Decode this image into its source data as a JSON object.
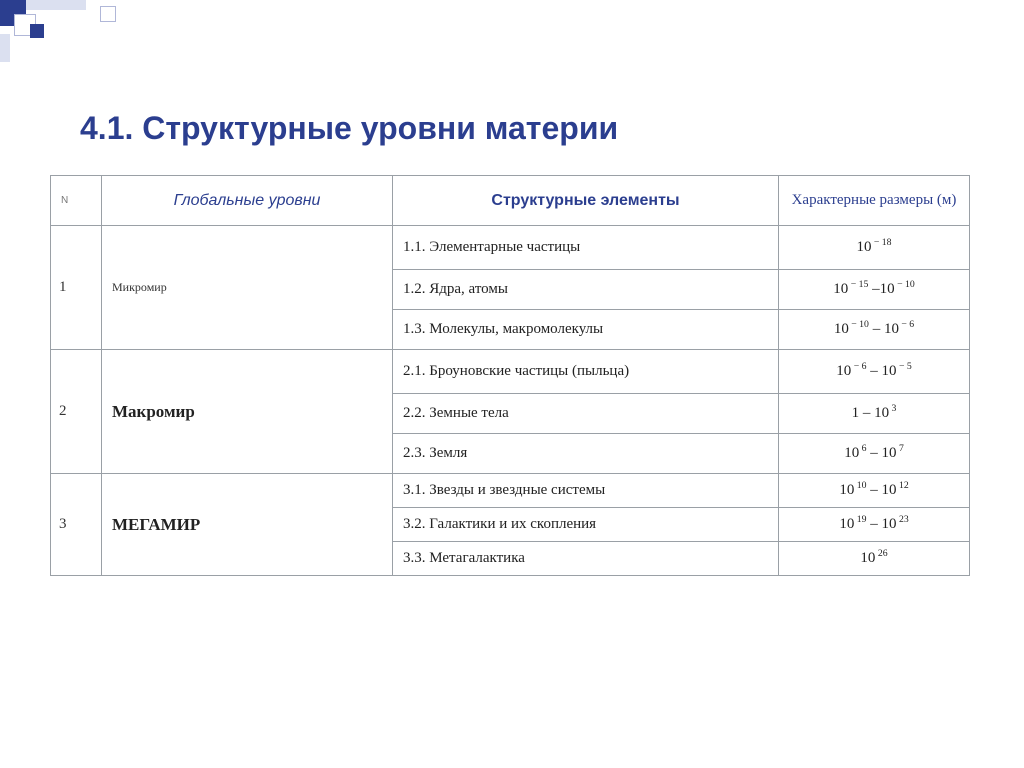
{
  "title": "4.1. Структурные уровни материи",
  "headers": {
    "n": "N",
    "global": "Глобальные уровни",
    "struct": "Структурные элементы",
    "size": "Характерные размеры (м)"
  },
  "groups": [
    {
      "n": "1",
      "level": "Микромир",
      "level_class": "lvl-1",
      "rows": [
        {
          "elem": "1.1. Элементарные частицы",
          "size_html": "10<sup>&nbsp;&minus; 18</sup>",
          "row_class": "tall"
        },
        {
          "elem": "1.2. Ядра, атомы",
          "size_html": "10<sup>&nbsp;&minus; 15</sup> &ndash;10<sup>&nbsp;&minus; 10</sup>",
          "row_class": "med"
        },
        {
          "elem": "1.3. Молекулы, макромолекулы",
          "size_html": "10<sup>&nbsp;&minus; 10</sup> &ndash; 10<sup>&nbsp;&minus; 6</sup>",
          "row_class": "med"
        }
      ]
    },
    {
      "n": "2",
      "level": "Макромир",
      "level_class": "lvl-2",
      "rows": [
        {
          "elem": "2.1. Броуновские частицы (пыльца)",
          "size_html": "10<sup>&nbsp;&minus; 6</sup> &ndash; 10<sup>&nbsp;&minus; 5</sup>",
          "row_class": "tall"
        },
        {
          "elem": "2.2. Земные тела",
          "size_html": "1 &ndash; 10<sup>&nbsp;3</sup>",
          "row_class": "med"
        },
        {
          "elem": "2.3. Земля",
          "size_html": "10<sup>&nbsp;6</sup> &ndash; 10<sup>&nbsp;7</sup>",
          "row_class": "med"
        }
      ]
    },
    {
      "n": "3",
      "level": "МЕГАМИР",
      "level_class": "lvl-3",
      "rows": [
        {
          "elem": "3.1. Звезды и звездные системы",
          "size_html": "10<sup>&nbsp;10</sup> &ndash; 10<sup>&nbsp;12</sup>",
          "row_class": "short"
        },
        {
          "elem": "3.2. Галактики и их скопления",
          "size_html": "10<sup>&nbsp;19</sup> &ndash; 10<sup>&nbsp;23</sup>",
          "row_class": "short"
        },
        {
          "elem": "3.3. Метагалактика",
          "size_html": "10<sup>&nbsp;26</sup>",
          "row_class": "short"
        }
      ]
    }
  ],
  "colors": {
    "accent": "#2b3e8f",
    "border": "#9aa0a6",
    "text": "#222222",
    "background": "#ffffff"
  }
}
